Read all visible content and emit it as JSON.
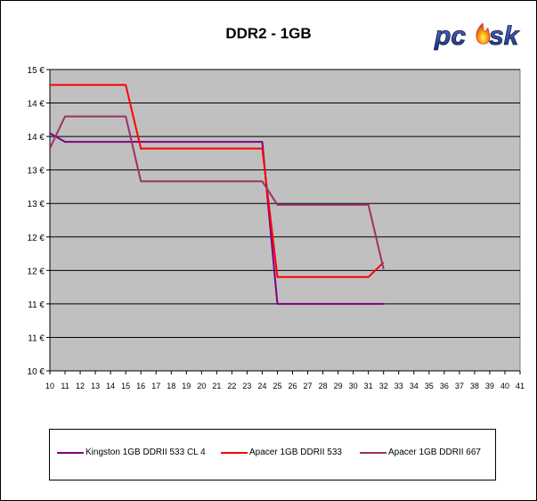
{
  "chart_data": {
    "type": "line",
    "title": "DDR2 - 1GB",
    "xlabel": "",
    "ylabel": "",
    "x": [
      10,
      11,
      12,
      13,
      14,
      15,
      16,
      17,
      18,
      19,
      20,
      21,
      22,
      23,
      24,
      25,
      26,
      27,
      28,
      29,
      30,
      31,
      32,
      33,
      34,
      35,
      36,
      37,
      38,
      39,
      40,
      41
    ],
    "x_tick_labels": [
      "10",
      "11",
      "12",
      "13",
      "14",
      "15",
      "16",
      "17",
      "18",
      "19",
      "20",
      "21",
      "22",
      "23",
      "24",
      "25",
      "26",
      "27",
      "28",
      "29",
      "30",
      "31",
      "32",
      "33",
      "34",
      "35",
      "36",
      "37",
      "38",
      "39",
      "40",
      "41"
    ],
    "xlim": [
      10,
      41
    ],
    "y_tick_labels": [
      "15 €",
      "14 €",
      "14 €",
      "13 €",
      "13 €",
      "12 €",
      "12 €",
      "11 €",
      "11 €",
      "10 €"
    ],
    "y_tick_values": [
      15,
      14.5,
      14,
      13.5,
      13,
      12.5,
      12,
      11.5,
      11,
      10.5
    ],
    "ylim": [
      10.5,
      15
    ],
    "grid": "horizontal",
    "background": "#c0c0c0",
    "series": [
      {
        "name": "Kingston 1GB DDRII 533 CL 4",
        "color": "#800080",
        "x": [
          10,
          11,
          24,
          25,
          32
        ],
        "values": [
          14.05,
          13.92,
          13.92,
          11.5,
          11.5
        ]
      },
      {
        "name": "Apacer 1GB DDRII 533",
        "color": "#ff0000",
        "x": [
          10,
          15,
          16,
          24,
          25,
          31,
          32
        ],
        "values": [
          14.77,
          14.77,
          13.82,
          13.82,
          11.9,
          11.9,
          12.12
        ]
      },
      {
        "name": "Apacer 1GB DDRII 667",
        "color": "#993366",
        "x": [
          10,
          11,
          15,
          16,
          24,
          25,
          31,
          32
        ],
        "values": [
          13.82,
          14.3,
          14.3,
          13.33,
          13.33,
          12.98,
          12.98,
          12.02
        ]
      }
    ],
    "legend": "bottom"
  },
  "logo": {
    "text": "pcsk"
  }
}
